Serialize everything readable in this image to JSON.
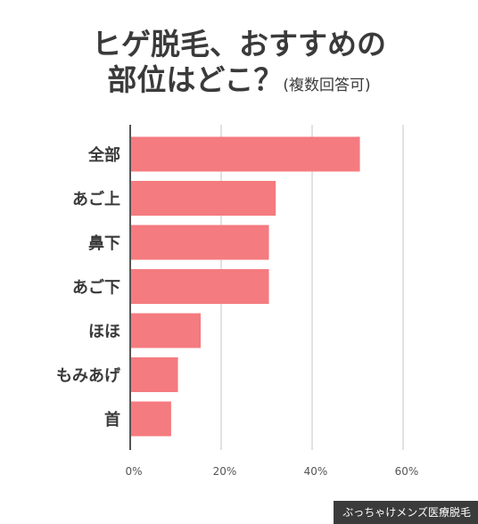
{
  "title": {
    "line1": "ヒゲ脱毛、おすすめの",
    "line2": "部位はどこ？",
    "subtitle": "(複数回答可)"
  },
  "watermark": "ぶっちゃけメンズ医療脱毛",
  "colors": {
    "bar": "#f47b7f",
    "grid": "#d9d9d9",
    "axis": "#555555",
    "label": "#3a3a3a",
    "tick": "#555555",
    "watermark_bg": "#3b3b3b"
  },
  "chart_data": {
    "type": "bar",
    "orientation": "horizontal",
    "categories": [
      "全部",
      "あご上",
      "鼻下",
      "あご下",
      "ほほ",
      "もみあげ",
      "首"
    ],
    "values": [
      50.5,
      32,
      30.5,
      30.5,
      15.5,
      10.5,
      9
    ],
    "xlim": [
      0,
      60
    ],
    "x_ticks": [
      0,
      20,
      40,
      60
    ],
    "x_tick_labels": [
      "0%",
      "20%",
      "40%",
      "60%"
    ],
    "grid": true,
    "title": "ヒゲ脱毛、おすすめの部位はどこ？",
    "xlabel": "",
    "ylabel": ""
  }
}
